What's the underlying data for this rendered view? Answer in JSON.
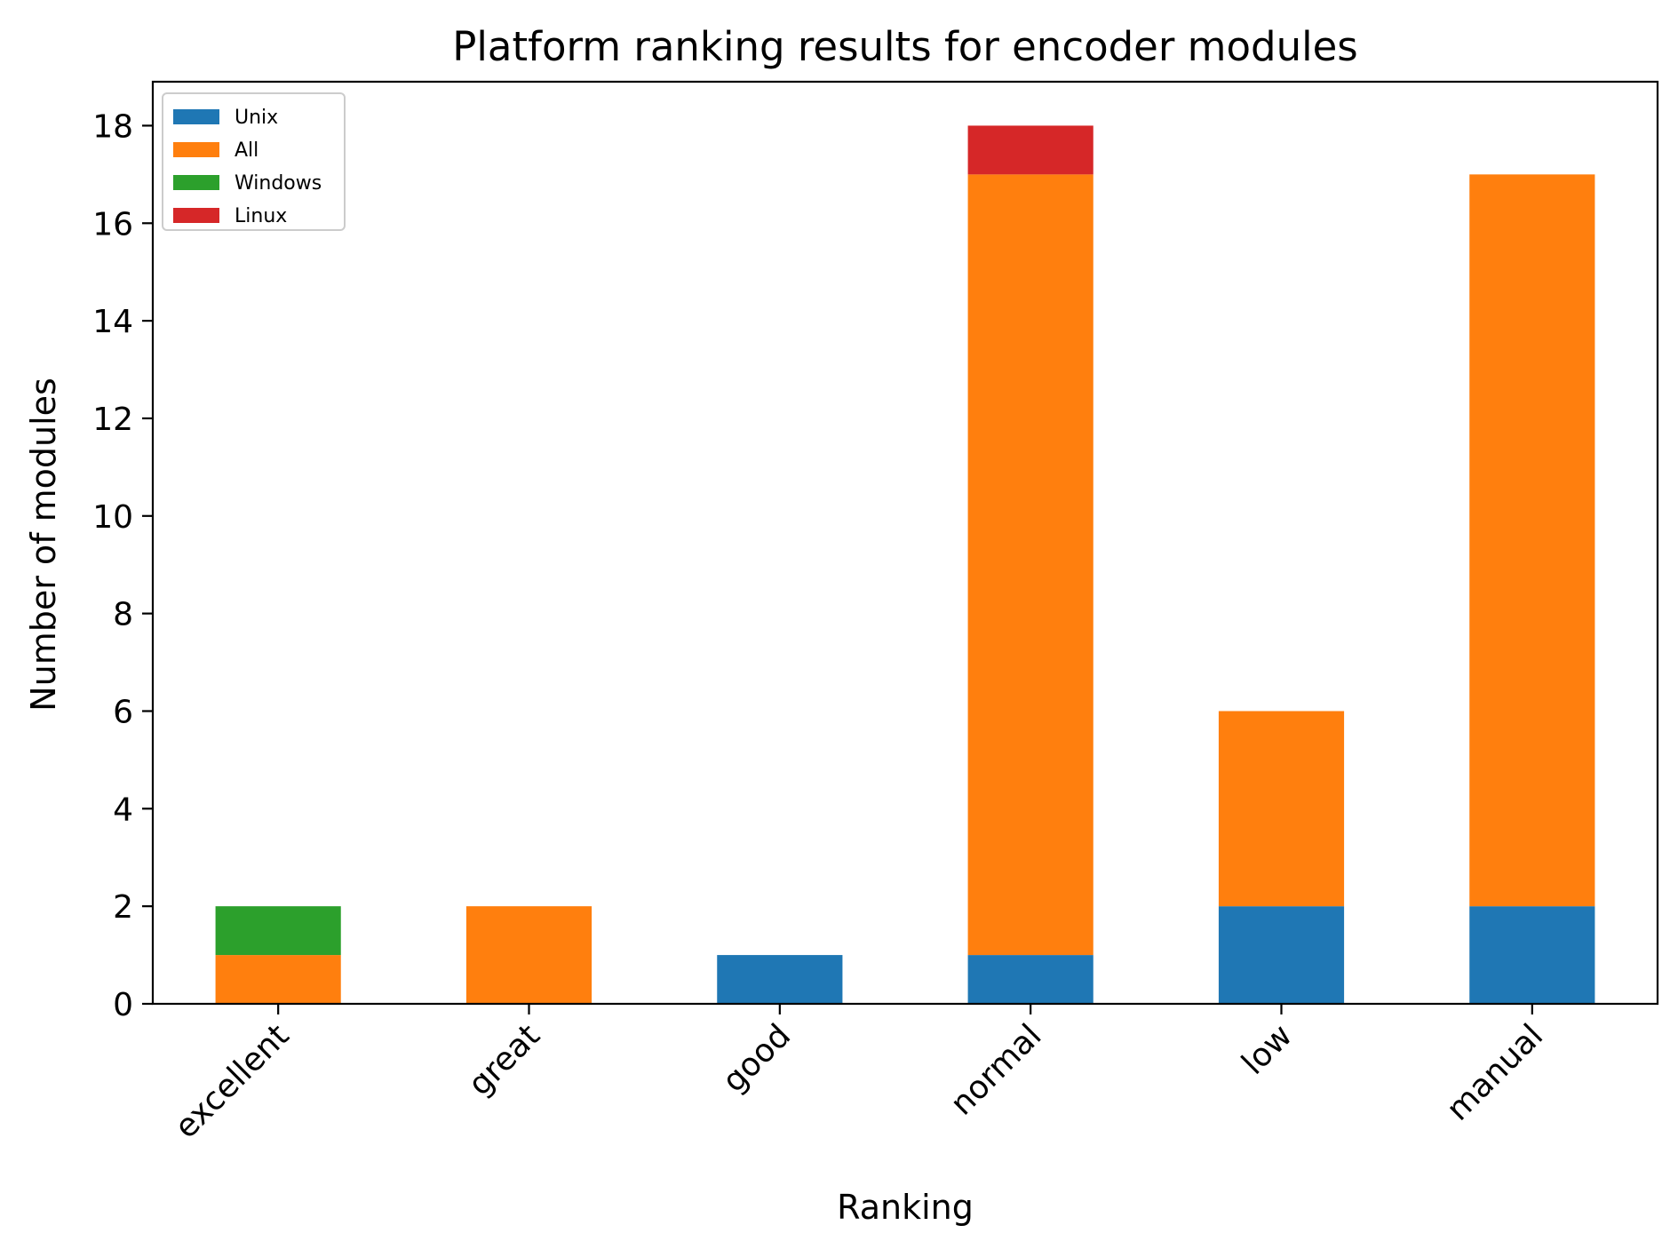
{
  "chart_data": {
    "type": "bar",
    "stacked": true,
    "title": "Platform ranking results for encoder modules",
    "xlabel": "Ranking",
    "ylabel": "Number of modules",
    "categories": [
      "excellent",
      "great",
      "good",
      "normal",
      "low",
      "manual"
    ],
    "series": [
      {
        "name": "Unix",
        "color": "#1f77b4",
        "values": [
          0,
          0,
          1,
          1,
          2,
          2
        ]
      },
      {
        "name": "All",
        "color": "#ff7f0e",
        "values": [
          1,
          2,
          0,
          16,
          4,
          15
        ]
      },
      {
        "name": "Windows",
        "color": "#2ca02c",
        "values": [
          1,
          0,
          0,
          0,
          0,
          0
        ]
      },
      {
        "name": "Linux",
        "color": "#d62728",
        "values": [
          0,
          0,
          0,
          1,
          0,
          0
        ]
      }
    ],
    "ylim": [
      0,
      18.9
    ],
    "yticks": [
      0,
      2,
      4,
      6,
      8,
      10,
      12,
      14,
      16,
      18
    ],
    "grid": false,
    "legend_position": "top-left"
  }
}
